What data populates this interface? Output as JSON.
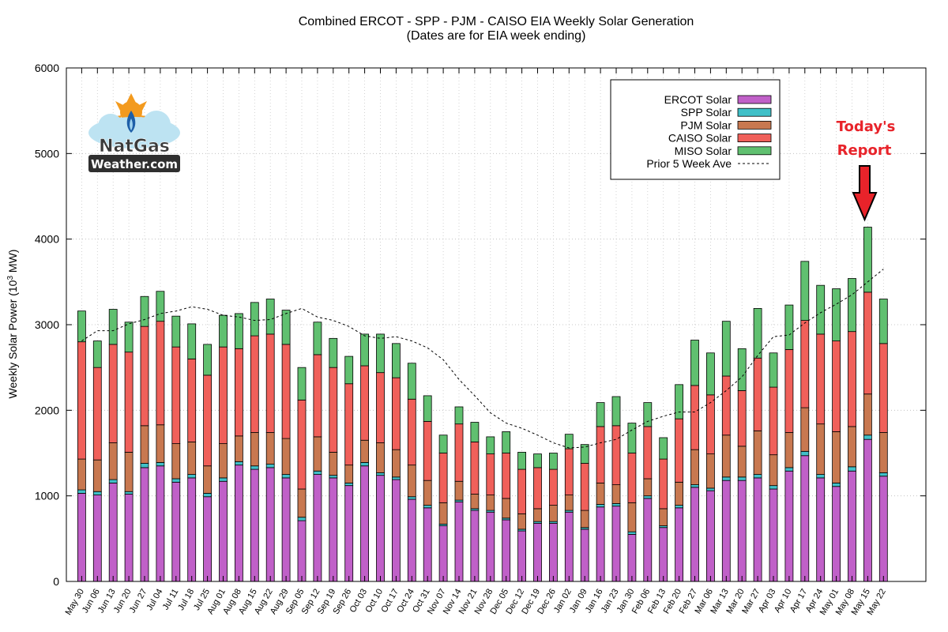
{
  "chart_data": {
    "type": "bar",
    "stacked": true,
    "title": "Combined ERCOT - SPP - PJM - CAISO EIA Weekly Solar Generation",
    "subtitle": "(Dates are for EIA week ending)",
    "ylabel_main": "Weekly Solar Power (10",
    "ylabel_sup": "3",
    "ylabel_end": " MW)",
    "xlabel": "",
    "ylim": [
      0,
      6000
    ],
    "yticks": [
      0,
      1000,
      2000,
      3000,
      4000,
      5000,
      6000
    ],
    "legend_position": "top-right",
    "categories": [
      "May 30",
      "Jun 06",
      "Jun 13",
      "Jun 20",
      "Jun 27",
      "Jul 04",
      "Jul 11",
      "Jul 18",
      "Jul 25",
      "Aug 01",
      "Aug 08",
      "Aug 15",
      "Aug 22",
      "Aug 29",
      "Sep 05",
      "Sep 12",
      "Sep 19",
      "Sep 26",
      "Oct 03",
      "Oct 10",
      "Oct 17",
      "Oct 24",
      "Oct 31",
      "Nov 07",
      "Nov 14",
      "Nov 21",
      "Nov 28",
      "Dec 05",
      "Dec 12",
      "Dec 19",
      "Dec 26",
      "Jan 02",
      "Jan 09",
      "Jan 16",
      "Jan 23",
      "Jan 30",
      "Feb 06",
      "Feb 13",
      "Feb 20",
      "Feb 27",
      "Mar 06",
      "Mar 13",
      "Mar 20",
      "Mar 27",
      "Apr 03",
      "Apr 10",
      "Apr 17",
      "Apr 24",
      "May 01",
      "May 08",
      "May 15",
      "May 22"
    ],
    "series": [
      {
        "name": "ERCOT Solar",
        "color": "#c060c8",
        "values": [
          1030,
          1010,
          1150,
          1020,
          1330,
          1350,
          1160,
          1210,
          990,
          1170,
          1360,
          1310,
          1330,
          1210,
          710,
          1250,
          1210,
          1120,
          1350,
          1240,
          1190,
          960,
          860,
          650,
          930,
          830,
          810,
          720,
          590,
          680,
          680,
          810,
          610,
          870,
          880,
          550,
          970,
          630,
          860,
          1100,
          1060,
          1180,
          1180,
          1210,
          1080,
          1290,
          1470,
          1210,
          1110,
          1290,
          1660,
          1230
        ]
      },
      {
        "name": "SPP Solar",
        "color": "#40c0c8",
        "values": [
          40,
          40,
          40,
          30,
          50,
          40,
          40,
          40,
          40,
          40,
          40,
          40,
          40,
          40,
          40,
          40,
          30,
          30,
          40,
          30,
          30,
          30,
          30,
          20,
          20,
          20,
          20,
          20,
          20,
          20,
          20,
          20,
          20,
          30,
          30,
          30,
          30,
          20,
          30,
          30,
          30,
          40,
          40,
          40,
          40,
          40,
          50,
          40,
          40,
          50,
          50,
          40
        ]
      },
      {
        "name": "PJM Solar",
        "color": "#c87850",
        "values": [
          360,
          370,
          430,
          460,
          440,
          440,
          410,
          380,
          320,
          400,
          300,
          390,
          370,
          420,
          330,
          400,
          270,
          210,
          260,
          350,
          320,
          370,
          290,
          250,
          220,
          170,
          180,
          230,
          180,
          150,
          190,
          180,
          200,
          250,
          220,
          340,
          200,
          200,
          270,
          410,
          400,
          490,
          360,
          510,
          360,
          410,
          510,
          590,
          600,
          470,
          480,
          470
        ]
      },
      {
        "name": "CAISO Solar",
        "color": "#f0605a",
        "values": [
          1370,
          1080,
          1150,
          1170,
          1160,
          1210,
          1130,
          970,
          1060,
          1130,
          1020,
          1130,
          1150,
          1100,
          1040,
          960,
          990,
          950,
          870,
          820,
          840,
          770,
          690,
          580,
          670,
          610,
          480,
          530,
          520,
          480,
          420,
          540,
          550,
          660,
          690,
          580,
          610,
          580,
          740,
          750,
          690,
          690,
          650,
          850,
          790,
          970,
          1020,
          1050,
          1060,
          1110,
          1190,
          1040
        ]
      },
      {
        "name": "MISO Solar",
        "color": "#60c070",
        "values": [
          360,
          310,
          410,
          350,
          350,
          350,
          360,
          410,
          360,
          370,
          410,
          390,
          410,
          400,
          380,
          380,
          340,
          320,
          370,
          450,
          400,
          420,
          300,
          210,
          200,
          230,
          200,
          250,
          200,
          160,
          190,
          170,
          220,
          280,
          340,
          350,
          280,
          250,
          400,
          530,
          490,
          640,
          490,
          580,
          400,
          520,
          690,
          570,
          610,
          620,
          760,
          520
        ]
      }
    ],
    "line_series": {
      "name": "Prior 5 Week Ave",
      "style": "dashed",
      "values": [
        2810,
        2930,
        2930,
        3010,
        3060,
        3130,
        3160,
        3210,
        3180,
        3110,
        3090,
        3050,
        3060,
        3130,
        3190,
        3090,
        3050,
        2980,
        2870,
        2840,
        2860,
        2810,
        2730,
        2590,
        2360,
        2170,
        1970,
        1850,
        1790,
        1710,
        1620,
        1560,
        1570,
        1620,
        1660,
        1770,
        1870,
        1930,
        1980,
        1980,
        2090,
        2230,
        2390,
        2640,
        2860,
        2880,
        3020,
        3140,
        3240,
        3350,
        3500,
        3650
      ]
    },
    "annotation": {
      "line1": "Today's",
      "line2": "Report",
      "target_category": "May 15",
      "color": "#e8232a"
    }
  },
  "logo": {
    "line1": "NatGas",
    "line2": "Weather.com"
  }
}
